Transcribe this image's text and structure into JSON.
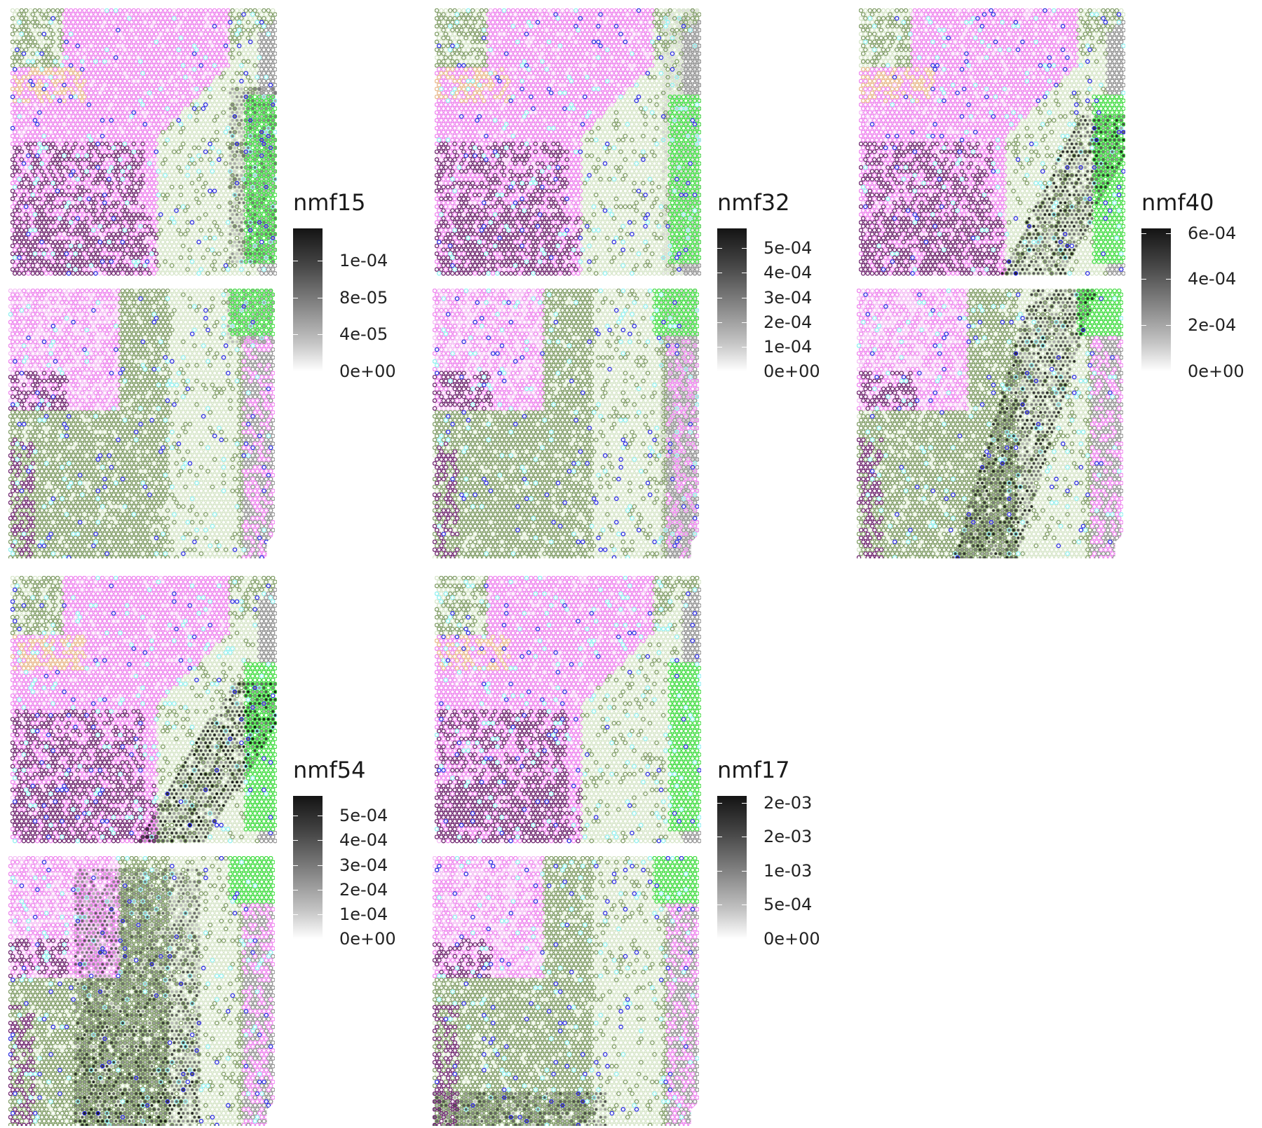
{
  "chart_data": [
    {
      "type": "heatmap",
      "subtype": "spatial-spot-map",
      "legend_title": "nmf15",
      "colorscale": [
        "#ffffff",
        "#000000"
      ],
      "legend_ticks": [
        {
          "label": "0e+00",
          "value": 0
        },
        {
          "label": "4e-05",
          "value": 4e-05
        },
        {
          "label": "8e-05",
          "value": 8e-05
        },
        {
          "label": "1e-04",
          "value": 0.00012
        }
      ],
      "range": [
        0,
        0.000155
      ],
      "hotspot": "right-edge green band",
      "intensity": 0.55
    },
    {
      "type": "heatmap",
      "subtype": "spatial-spot-map",
      "legend_title": "nmf32",
      "colorscale": [
        "#ffffff",
        "#000000"
      ],
      "legend_ticks": [
        {
          "label": "0e+00",
          "value": 0
        },
        {
          "label": "1e-04",
          "value": 0.0001
        },
        {
          "label": "2e-04",
          "value": 0.0002
        },
        {
          "label": "3e-04",
          "value": 0.0003
        },
        {
          "label": "4e-04",
          "value": 0.0004
        },
        {
          "label": "5e-04",
          "value": 0.0005
        }
      ],
      "range": [
        0,
        0.00058
      ],
      "hotspot": "right-edge band",
      "intensity": 0.35
    },
    {
      "type": "heatmap",
      "subtype": "spatial-spot-map",
      "legend_title": "nmf40",
      "colorscale": [
        "#ffffff",
        "#000000"
      ],
      "legend_ticks": [
        {
          "label": "0e+00",
          "value": 0
        },
        {
          "label": "2e-04",
          "value": 0.0002
        },
        {
          "label": "4e-04",
          "value": 0.0004
        },
        {
          "label": "6e-04",
          "value": 0.0006
        }
      ],
      "range": [
        0,
        0.00062
      ],
      "hotspot": "central diagonal band",
      "intensity": 0.85
    },
    {
      "type": "heatmap",
      "subtype": "spatial-spot-map",
      "legend_title": "nmf54",
      "colorscale": [
        "#ffffff",
        "#000000"
      ],
      "legend_ticks": [
        {
          "label": "0e+00",
          "value": 0
        },
        {
          "label": "1e-04",
          "value": 0.0001
        },
        {
          "label": "2e-04",
          "value": 0.0002
        },
        {
          "label": "3e-04",
          "value": 0.0003
        },
        {
          "label": "4e-04",
          "value": 0.0004
        },
        {
          "label": "5e-04",
          "value": 0.0005
        }
      ],
      "range": [
        0,
        0.00058
      ],
      "hotspot": "central band, lower section broad",
      "intensity": 0.9
    },
    {
      "type": "heatmap",
      "subtype": "spatial-spot-map",
      "legend_title": "nmf17",
      "colorscale": [
        "#ffffff",
        "#000000"
      ],
      "legend_ticks": [
        {
          "label": "0e+00",
          "value": 0
        },
        {
          "label": "5e-04",
          "value": 0.0005
        },
        {
          "label": "1e-03",
          "value": 0.001
        },
        {
          "label": "2e-03",
          "value": 0.0015
        },
        {
          "label": "2e-03",
          "value": 0.002
        }
      ],
      "range": [
        0,
        0.0021
      ],
      "hotspot": "bottom edge of lower section",
      "intensity": 0.7
    }
  ],
  "colors": {
    "magenta": "#ee82ee",
    "light_pink": "#f4bdf4",
    "dark_purple": "#6b1f6b",
    "olive": "#7d9a62",
    "pale_green": "#d6e5c8",
    "bright_green": "#3fdc3f",
    "cyan": "#8ef0f0",
    "peach": "#e8b88a",
    "grey": "#8f8f8f",
    "blue": "#2828e0"
  }
}
